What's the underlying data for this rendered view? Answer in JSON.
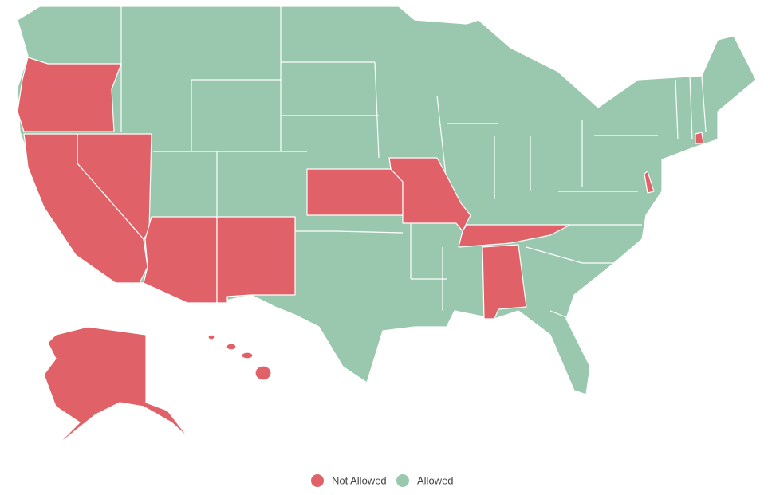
{
  "legend": [
    {
      "label": "Not Allowed",
      "color": "#e06268"
    },
    {
      "label": "Allowed",
      "color": "#99c8ae"
    }
  ]
}
